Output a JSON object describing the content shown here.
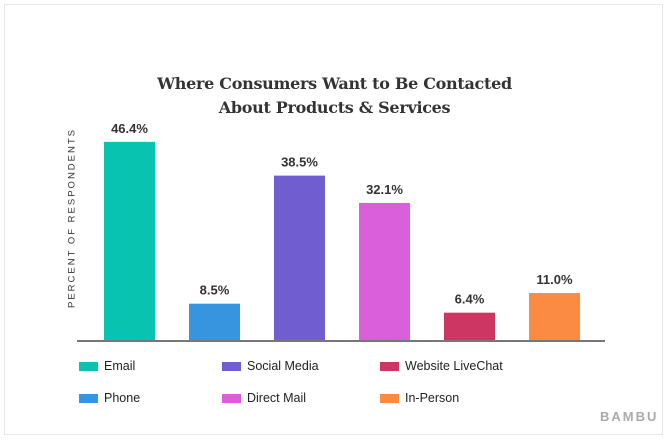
{
  "chart_data": {
    "type": "bar",
    "title": "Where Consumers Want to Be Contacted About Products & Services",
    "title_lines": [
      "Where Consumers Want to Be Contacted",
      "About Products & Services"
    ],
    "ylabel": "PERCENT OF RESPONDENTS",
    "xlabel": "",
    "ylim": [
      0,
      50
    ],
    "grid": false,
    "legend_position": "bottom",
    "categories": [
      "Email",
      "Phone",
      "Social Media",
      "Direct Mail",
      "Website LiveChat",
      "In-Person"
    ],
    "values": [
      46.4,
      8.5,
      38.5,
      32.1,
      6.4,
      11.0
    ],
    "data_labels": [
      "46.4%",
      "8.5%",
      "38.5%",
      "32.1%",
      "6.4%",
      "11.0%"
    ],
    "colors": [
      "#07c3b0",
      "#3795e0",
      "#705dd0",
      "#da5fda",
      "#cd3662",
      "#fb8b43"
    ],
    "legend": [
      {
        "label": "Email",
        "color": "#07c3b0"
      },
      {
        "label": "Social Media",
        "color": "#705dd0"
      },
      {
        "label": "Website LiveChat",
        "color": "#cd3662"
      },
      {
        "label": "Phone",
        "color": "#3795e0"
      },
      {
        "label": "Direct Mail",
        "color": "#da5fda"
      },
      {
        "label": "In-Person",
        "color": "#fb8b43"
      }
    ]
  },
  "brand": "BAMBU"
}
